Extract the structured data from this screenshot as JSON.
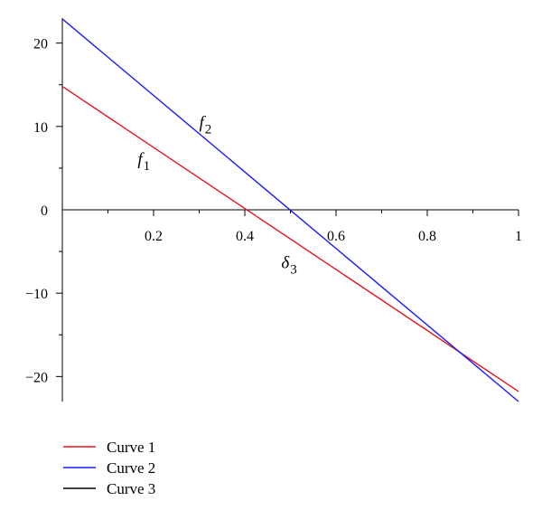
{
  "chart_data": {
    "type": "line",
    "title": "",
    "xlabel": "",
    "ylabel": "",
    "xlim": [
      0,
      1
    ],
    "ylim": [
      -23,
      23
    ],
    "xticks": [
      0.2,
      0.4,
      0.6,
      0.8,
      1
    ],
    "xtick_labels": [
      "0.2",
      "0.4",
      "0.6",
      "0.8",
      "1"
    ],
    "yticks": [
      20,
      10,
      0,
      -10,
      -20
    ],
    "ytick_labels": [
      "20",
      "10",
      "0",
      "−10",
      "−20"
    ],
    "grid": false,
    "series": [
      {
        "name": "Curve 1",
        "color": "#e8141c",
        "x": [
          0,
          1
        ],
        "y": [
          14.8,
          -21.8
        ]
      },
      {
        "name": "Curve 2",
        "color": "#1a1aff",
        "x": [
          0,
          1
        ],
        "y": [
          22.9,
          -23.0
        ]
      },
      {
        "name": "Curve 3",
        "color": "#000000",
        "x": [],
        "y": []
      }
    ],
    "annotations": [
      {
        "base": "f",
        "sub": "2",
        "x": 0.3,
        "y": 9.8
      },
      {
        "base": "f",
        "sub": "1",
        "x": 0.165,
        "y": 5.4
      },
      {
        "base": "δ",
        "sub": "3",
        "x": 0.48,
        "y": -7.0
      }
    ],
    "legend_position": "bottom-left"
  }
}
